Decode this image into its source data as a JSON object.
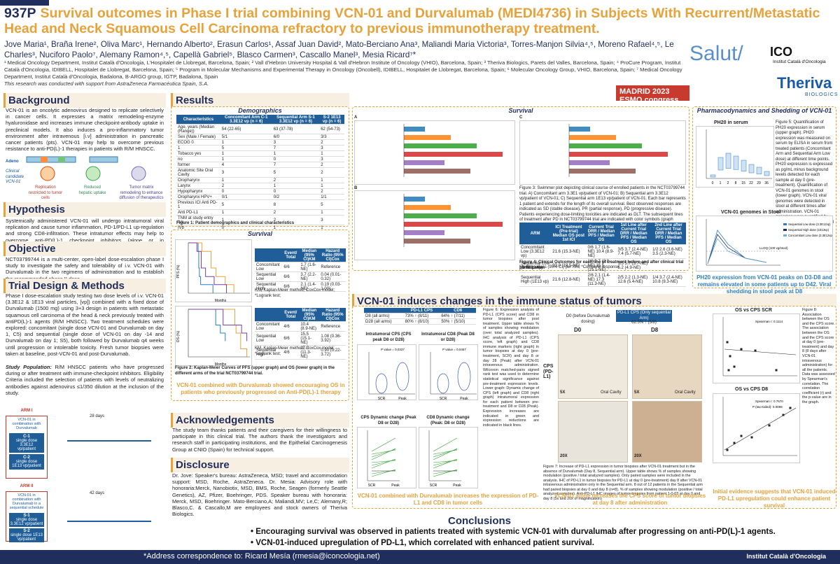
{
  "header": {
    "code": "937P",
    "title": "Survival outcomes in Phase I trial combining VCN-01 and Durvalumab (MEDI4736) in Subjects With Recurrent/Metastatic Head and Neck Squamous Cell Carcinoma refractory to previous immunotherapy treatment.",
    "authors": "Jove Maria¹, Braña Irene², Oliva Marc¹, Hernando Alberto², Erasun Carlos¹, Assaf Juan David², Mato-Berciano Ana³, Maliandi Maria Victoria³, Torres-Manjon Silvia⁴,⁵, Moreno Rafael⁴,⁵, Le Charles³, Nuciforo Paolo⁷, Alemany Ramon⁴,⁵, Capellà Gabriel⁵, Blasco Carmen³, Cascallo Manel³, Mesia Ricard⁷*",
    "affiliations": "¹ Medical Oncology Department, Institut Català d'Oncologia, L'Hospitalet de Llobregat, Barcelona, Spain; ² Vall d'Hebron University Hospital & Vall d'Hebron Institute of Oncology (VHIO), Barcelona, Spain; ³ Theriva Biologics, Parets del Valles, Barcelona, Spain; ⁴ ProCure Program, Institut Català d'Oncologia, IDIBELL, Hospitalet de Llobregat, Barcelona, Spain; ⁵ Program in Molecular Mechanisms and Experimental Therapy in Oncology (Oncobell), IDIBELL, Hospitalet de Llobregat, Barcelona, Spain; ⁶ Molecular Oncology Group, VHIO, Barcelona, Spain; ⁷ Medical Oncology Department, Institut Català d'Oncologia, Badalona, B-ARGO group, IGTP, Badalona, Spain",
    "support": "This research was conducted with support from AstraZeneca Farmacéutica Spain, S.A."
  },
  "logos": {
    "salut": "Salut/",
    "ico": "ICO",
    "ico_sub": "Institut Català d'Oncologia",
    "esmo": "MADRID 2023 ESMO congress",
    "theriva": "Theriva",
    "theriva_sub": "BIOLOGICS"
  },
  "left": {
    "background_h": "Background",
    "background": "VCN-01 is an oncolytic adenovirus designed to replicate selectively in cancer cells. It expresses a matrix remodeling-enzyme hyaluronidase and increases immune checkpoint-antibody uptake in preclinical models. It also induces a pro-inflammatory tumor environment after intravenous [i.v] administration in pancreatic cancer patients (pts). VCN-01 may help to overcome previous resistance to anti-PD(L)-1 therapies in patients with R/M HNSCC.",
    "hypothesis_h": "Hypothesis",
    "hypothesis": "Systemically administered VCN-01 will undergo intratumoral viral replication and cause tumor inflammation, PD-1/PD-L1 up-regulation and strong CD8-infiltration. These intratumor effects may help to overcome anti-PD(L)-1 checkpoint inhibitors (alone or in combination) in patients who have progressed during or after treatment with immune-checkpoint inhibitors.",
    "objective_h": "Objective",
    "objective": "NCT03799744 is a multi-center, open-label dose-escalation phase I study to investigate the safety and tolerability of i.v. VCN-01 with Durvalumab in the two regimens of administration and to establish the recommended phase II dose.",
    "trial_h": "Trial Design & Methods",
    "trial": "Phase I dose-escalation study testing two dose levels of i.v. VCN-01 (3.3E12 & 1E13 viral particles, [vp]) combined with a fixed dose of Durvalumab (1500 mg) using 3+3 design in patients with metastatic squamous cell carcinoma of the head & neck previously treated with antiPD(L)-1 agents (R/M HNSCC). Two treatment schedules were explored: concomitant (single dose VCN-01 and Durvalumab on day 1, C5) and sequential (single dose of VCN-01 on day -14 and Durvalumab on day 1; S5), both followed by Durvalumab q4 weeks until progression or intolerable toxicity. Fresh tumor biopsies were taken at baseline, post-VCN-01 and post-Durvalumab.",
    "population_label": "Study Population:",
    "population": "R/M HNSCC patients who have progressed during or after treatment with immune-checkpoint inhibitors. Eligibility Criteria included the selection of patients with levels of neutralizing antibodies against adenovirus ≤1/350 dilution at the inclusion of the study.",
    "arm1": "ARM I",
    "arm2": "ARM II",
    "arm1_box": "VCN-01 in combination with Durvalumab",
    "arm2_box": "VCN-01 in combination with Durvalumab in a sequential schedule",
    "c1": "C-1",
    "c1_sub": "single dose 3.3E12 vp/patient",
    "c2": "C-2",
    "c2_sub": "single dose 1E13 vp/patient",
    "s1": "S-1",
    "s1_sub": "single dose 3.3E12 vp/patient",
    "s2": "S-2",
    "s2_sub": "single dose 1E13 vp/patient",
    "days28": "28 days",
    "days42": "42 days",
    "adeno_label": "Adeno",
    "clinical_candidate": "Clinical candidate VCN-01",
    "replication": "Replication restricted to tumor cells",
    "reduced": "Reduced hepatic uptake",
    "remodeling": "Tumor matrix remodeling to enhance diffusion of therapeutics"
  },
  "results": {
    "h": "Results",
    "demographics_h": "Demographics",
    "demo_cols": [
      "Characteristics",
      "Concomitant Arm C-1 3.3E12 vp (n = 6)",
      "Sequential Arm S-1 3.3E12 vp (n = 6)",
      "S-2 1E13 vp (n = 6)"
    ],
    "demo_rows": [
      [
        "Age, years (Median (Range))",
        "54 (22-65)",
        "63 (37-78)",
        "62 (54-73)"
      ],
      [
        "Sex (Male / Female)",
        "5/1",
        "6/0",
        "3/3"
      ],
      [
        "ECOG  0",
        "1",
        "3",
        "2"
      ],
      [
        "1",
        "5",
        "7",
        "3"
      ],
      [
        "Tobacco  yes",
        "1",
        "1",
        "1"
      ],
      [
        "no",
        "1",
        "0",
        "3"
      ],
      [
        "former",
        "4",
        "7",
        "2"
      ],
      [
        "Anatomic Site  Oral Cavity",
        "3",
        "5",
        "2"
      ],
      [
        "Oropharynx",
        "1",
        "2",
        "1"
      ],
      [
        "Larynx",
        "2",
        "1",
        "1"
      ],
      [
        "Hypopharynx",
        "0",
        "0",
        "2"
      ],
      [
        "Oropharynx HPV+",
        "0/1",
        "0/2",
        "1/1"
      ],
      [
        "Previous ICI  Anti PD-1",
        "5",
        "8",
        "5"
      ],
      [
        "Anti PD-L1",
        "1",
        "2",
        "1"
      ],
      [
        "TNM at study entry  IVa",
        "1",
        "2",
        "3"
      ],
      [
        "IVb",
        "0",
        "1",
        "1"
      ],
      [
        "IVc",
        "3",
        "2",
        "1"
      ],
      [
        "unk",
        "2",
        "4",
        "0"
      ]
    ],
    "fig1_caption": "Figure 1: Patient demographics and clinical characteristics",
    "survival_h": "Survival",
    "pfs_table_head": [
      "",
      "Event/ Total",
      "Median (95% CI)KM",
      "Hazard Ratio (95% CI)Cox"
    ],
    "pfs_rows": [
      [
        "Concomitant Low",
        "6/6",
        "1.7 (1.6-NE)",
        "Reference"
      ],
      [
        "Sequential Low",
        "6/6",
        "3.7 (2.2-NE)",
        "0.04 (0.01-0.32)"
      ],
      [
        "Sequential High",
        "6/6",
        "2.1 (1.4-NE)",
        "0.19 (0.03-1.00)"
      ]
    ],
    "pfs_note": "KM, Kaplan-Meier method; CoxCox model; *Logrank test;",
    "os_table_head": [
      "",
      "Event/ Total",
      "Median (95% CI)KM",
      "Hazard Ratio (95% CI)Cox"
    ],
    "os_rows": [
      [
        "Concomitant Low",
        "4/6",
        "10.4 (8.9-NE)",
        "Reference"
      ],
      [
        "Sequential Low",
        "6/6",
        "15.5 (15.1-NE)",
        "1.08 (0.36-3.92)"
      ],
      [
        "Sequential High",
        "4/6",
        "17.3 (11.3-NE)",
        "0.90 (0.22-3.72)"
      ]
    ],
    "os_note": "KM, Kaplan-Meier method; CoxCox model; *Logrank test;",
    "pfs_ylabel": "PFS (%)",
    "os_ylabel": "OS (%)",
    "months": "Months",
    "fig2_caption": "Figure 2: Kaplan-Meier Curves of PFS (upper graph) and OS (lower graph) in the different arms of the trial NCT03799744 trial.",
    "fig2_highlight": "VCN-01 combined with Durvalumab showed encouraging OS in patients who previously progressed on Anti-PD(L)-1 therapy",
    "swimmer_h": "Survival",
    "swim_a": "A",
    "swim_b": "B",
    "swim_c": "C",
    "swim_title_a": "Concomitant Low Dose (3.3E12vp)",
    "swim_title_b": "Sequential Low Dose (3.3E12vp)",
    "swim_title_c": "Sequential High Dose (1E13vp)",
    "swim_xlabel": "Time post VCN-01 administration (months)",
    "fig3_caption": "Figure 3: Swimmer plot depicting clinical course of enrolled patients in the NCT03799744 trial. A) Concomitant arm 3.3E1 vp/patient of VCN-01; B) Sequential arm 3.3E12 vp/patient of VCN-01; C) Sequential arm 1E13 vp/patient of VCN-01. Each bar represents 1 patient and extends for the length of its overall survival. Best observed responses are indicated as SD (stable disease), PR (partial response), PD (progressive disease). Patients experiencing dose-limiting toxicities are indicated as DLT. The subsequent lines of treatment after PD in NCT03799744 trial are indicated with color symbols (graph legend): CA:DOS (Probably drug—Conjugate Anti-CD27); MTX (Methotrexate); T Thera70 (T Thera70 Vectors Expressing HPV16 Specific Antigens); GE (Gemcitabine); CBDCA (Carboplatin) CET (Cetuximab); CDDP (Cisplatin) PTX (Paclitaxel). * HPV positive",
    "fig4_head": [
      "ARM",
      "ICI Treatment (Pre-trial) Median OS post 1st ICI",
      "Current Trial DRR / Median PFS / Median OS",
      "1st Line after Current Trial DRR / Median PFS / Median OS",
      "2nd Line after Current Trial DRR / Median PFS / Median OS"
    ],
    "fig4_rows": [
      [
        "Concomitant Low (3.3E12 vp)",
        "21.6 (15.3-NE)",
        "0/6  1.7 (1.6-NE)  10.4 (8.9-NE)",
        "3/5  3.7 (2.4-NE)  7.4 (5.7-NE)",
        "1/2  2.6 (3.6-NE)  3.5 (2.3-NE)"
      ],
      [
        "Sequential Low (3.3E12 vp)",
        "23.0 (19.5-NE)",
        "1/6  3.7 (2.2-NE)  15.5 (15.1-NE)",
        "1/5  5.7 (3.7-NE)  5.2 (4.9-NE)",
        ""
      ],
      [
        "Sequential High (1E13 vp)",
        "21.6 (12.8-NE)",
        "2/6  2.1 (1.4-NE)  17.3 (11.3-NE)",
        "2/5  2.2 (1.3-NE)  12.6 (5.4-NE)",
        "1/4  3.7 (2.4-NE)  10.8 (9.3-NE)"
      ]
    ],
    "fig4_caption": "Figure 4: Clinical Outcomes for each line of treatment before and after clinical trial participation",
    "fig4_note": "Median values (95% CI) per KM; *Complete response",
    "pk_h": "Pharmacodynamics and Shedding of VCN-01",
    "ph20_title": "PH20 in serum",
    "ph20_x": "Days post VCN-01",
    "ph20_y": "PH20 in serum (ng/ml)",
    "ph20_days": [
      "0",
      "1",
      "2",
      "8",
      "15",
      "22",
      "29",
      "36"
    ],
    "fig5_caption": "Figure 5: Quantification of PH20 expression in serum (upper graph). PH20 expression was measured on serum by ELISA in serum from treated patients (Concomitant Arm and Sequential Arm Low dose) at different time points. PH20 expression is expressed as pg/mL minus background levels detected for each sample at day 0 (pre-treatment). Quantification of VCN-01 genomes in stool (lower graph). VCN-01 viral genomes were detected in stool at different times after administration. VCN-01 genomes were quantified by qPCR, in both arms, sequential and concomitant.",
    "stool_title": "VCN-01 genomes in Stool",
    "stool_x": "Days post VCN-01",
    "stool_y": "Viral genomes/200mg Stool",
    "stool_lloq": "LLOQ (100 vg/stool)",
    "stool_legend": [
      "Sequential Low dose (3.3E12vp)",
      "Sequential High dose (1E13vp)",
      "Concomitant Low dose (3.3E12vp)"
    ],
    "pk_highlight": "PH20 expression from VCN-01 peaks on D3-D8 and remains elevated in some patients up to D42. Viral shedding in stool peak at D8"
  },
  "immune": {
    "h": "VCN-01 induces changes in the immune status of tumors",
    "tbl_head": [
      "",
      "PD-L1 CPS",
      "CD8"
    ],
    "tbl_rows": [
      [
        "D8 (all arms)",
        "73% ↑ (8/11)",
        "64% ↑ (7/11)"
      ],
      [
        "D28 (all arms)",
        "80% ↑ (8/10)",
        "50% ↑ (5/10)"
      ]
    ],
    "cps_title": "Intratumoral CPS (CPS peak D8 or D28)",
    "cd8_title": "Intratumoral CD8 (Peak D8 or D28)",
    "pval1": "P value = 0.0337",
    "pval2": "P value = 0.0457",
    "cps_y": "CPS score",
    "cd8_y": "CD8 (cells/mm2)",
    "scr": "SCR",
    "peak": "Peak",
    "cps_dyn_title": "CPS Dynamic change (Peak D8 or D28)",
    "cd8_dyn_title": "CD8 Dynamic change (Peak: D8 or D28)",
    "fig6_caption": "Figure 6: Expression analysis of PD-L1 (CPS score) and CD8 in tumor biopsies after post treatment. Upper table shows % of samples showing modulation (over total analyzed samples). IHC analysis of PD-L1 (CPS score, left graph) and CD8 immune markers (right graph) in tumor biopsies at day 0 (pre-treatment, SCR) and day 8 or day 28 (Peak) after VCN-01 intravenous administration. Wilcoxon matched-pairs signed rank test was used to determine statistical significance against pre-treatment expression levels. Lower graph: Dynamic change of CPS (left graph) and CD8 (right graph) intratumoral expression for each patient between pre-treatment and D8 or D28 (Peak). Expression increases are indicated in green and expression reductions are indicated in black lines.",
    "fig6_highlight": "VCN-01 combined with Durvalumab increases the expression of PD-L1 and CD8 in tumor cells",
    "ihc_head": [
      "PD-L1 CPS (Only sequential Arm)"
    ],
    "ihc_d0": "D0 (before Durvalumab dosing)",
    "ihc_d0_val": "62.5% ↑ (5/8)",
    "ihc_col_d0": "D0",
    "ihc_col_d8": "D8",
    "ihc_row": "CPS (PD-L1)",
    "mag_5x": "5X",
    "mag_20x": "20X",
    "oral_cavity": "Oral Cavity",
    "fig7_caption": "Figure 7: Increase of PD-L1 expression in tumor biopsies after VCN-01 treatment but in the absence of Durvalumab (Day 8, Sequential arm). Upper table shows % of samples showing modulation (positive / total analyzed samples). Only paired samples were included in the analysis. IHC of PD-L1 in tumor biopsies for PD-L1 at day 0 (pre-treatment) day 8 after VCN-01 intravenous administration only in the Sequential arm. 8 out of 12 patients in the Sequential arm had paired biopsies at day 0 and day 8 (n=8). % of samples showing modulation (positive / total analyzed samples). Anti-PD-L1 IHC images of tumor biopsies from patient 1-0-03 at day 0 and day 8 (5x and 20x of magnification)",
    "fig7_highlight": "VCN-01 alone increases the CPS score of tumor biopsies at day 8 after administration",
    "os_scr_title": "OS vs CPS SCR",
    "os_d8_title": "OS vs CPS D8",
    "spearman1": "Spearman r: 0.1114",
    "spearman2": "Spearman r: 0.7670",
    "pval3": "P (two-tailed): 0.0096",
    "cps_x": "CPS score",
    "os_y": "OS (months)",
    "fig8_caption": "Figure 8: Association between the OS and the CPS score. The association between the OS and the CPS score at day 0 (pre-treatment) and day 8 (8 days after VCN-01 intravenous administration) for all the patients. Data was assessed by Spearman's correlation. The correlation coefficient (r) and the p-value are in the graph.",
    "fig8_highlight": "Initial evidence suggests that VCN-01 induced PD-L1 upregulation could enhance patient survival"
  },
  "ack": {
    "h": "Acknowledgements",
    "text": "The study team thanks patients and their caregivers for their willingness to participate in this clinical trial. The authors thank the investigators and research staff in participating institutions, and the Epithelial Carcinogenesis Group at CNIO (Spain) for technical support."
  },
  "disclosure": {
    "h": "Disclosure",
    "text": "Dr. Jove: Speaker's bureau: AstraZeneca, MSD; travel and accommodation support: MSD, Roche, AstraZeneca. Dr. Mesia: Advisory role with honoraria:Merck, Nanobiotix, MSD, BMS, Roche, Seagen (formerly Seattle Genetics), AZ, Pfizer, Boehringer, PDS. Speaker bureau with honoraria: Merck, MSD, Boehringer. Mato-Berciano,A; Maliandi,MV; Le,C; Alemany,R; Blasco,C. & Cascallo,M are employees and stock owners of Theriva Biologics."
  },
  "conclusions": {
    "h": "Conclusions",
    "items": [
      "Encouraging survival was observed in patients treated with systemic VCN-01 with durvalumab after progressing on anti-PD(L)-1 agents.",
      "VCN-01-induced upregulation of PD-L1, which correlated with enhanced patient survival."
    ]
  },
  "footer": {
    "correspondence": "*Address correspondence to: Ricard Mesía (rmesia@iconcologia.net)",
    "right": "Institut Català d'Oncologia"
  },
  "chart_data": [
    {
      "type": "line",
      "title": "",
      "ylabel": "PFS (%)",
      "xlabel": "Months",
      "ylim": [
        0,
        100
      ],
      "xlim": [
        0,
        10
      ],
      "series": [
        {
          "name": "Concomitant Low",
          "x": [
            0,
            1.6,
            1.7,
            1.8,
            2.0,
            4.0
          ],
          "y": [
            100,
            83,
            50,
            33,
            17,
            0
          ]
        },
        {
          "name": "Sequential Low",
          "x": [
            0,
            2.2,
            3.7,
            4.5,
            6.0,
            7.4
          ],
          "y": [
            100,
            83,
            50,
            33,
            17,
            0
          ]
        },
        {
          "name": "Sequential High",
          "x": [
            0,
            1.4,
            2.1,
            2.8,
            4.2,
            6.2
          ],
          "y": [
            100,
            83,
            50,
            33,
            17,
            0
          ]
        }
      ]
    },
    {
      "type": "line",
      "title": "",
      "ylabel": "OS (%)",
      "xlabel": "Months",
      "ylim": [
        0,
        100
      ],
      "xlim": [
        0,
        20
      ],
      "series": [
        {
          "name": "Concomitant Low",
          "x": [
            0,
            8.9,
            10.4,
            12
          ],
          "y": [
            100,
            67,
            50,
            33
          ]
        },
        {
          "name": "Sequential Low",
          "x": [
            0,
            15.1,
            15.5,
            17,
            19
          ],
          "y": [
            100,
            67,
            50,
            17,
            0
          ]
        },
        {
          "name": "Sequential High",
          "x": [
            0,
            11.3,
            17.3,
            19
          ],
          "y": [
            100,
            67,
            50,
            33
          ]
        }
      ]
    }
  ]
}
